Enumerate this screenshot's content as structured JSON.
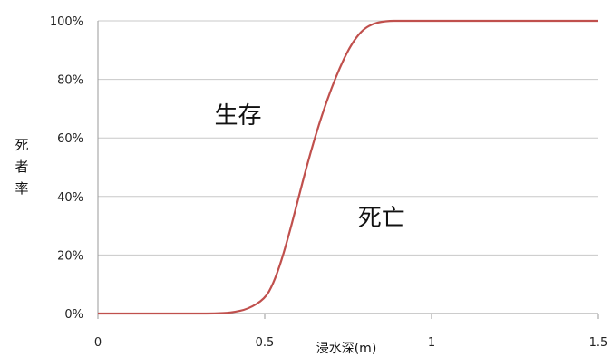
{
  "chart_data": {
    "type": "line",
    "title": "",
    "xlabel": "浸水深(m)",
    "ylabel": "死者率",
    "xlim": [
      0,
      1.5
    ],
    "ylim": [
      0,
      100
    ],
    "x_ticks": [
      0,
      0.5,
      1,
      1.5
    ],
    "x_tick_labels": [
      "0",
      "0.5",
      "1",
      "1.5"
    ],
    "y_ticks": [
      0,
      20,
      40,
      60,
      80,
      100
    ],
    "y_tick_labels": [
      "0%",
      "20%",
      "40%",
      "60%",
      "80%",
      "100%"
    ],
    "grid": "horizontal",
    "legend": "none",
    "annotations": [
      {
        "text": "生存",
        "x": 0.42,
        "y": 65
      },
      {
        "text": "死亡",
        "x": 0.85,
        "y": 30
      }
    ],
    "series": [
      {
        "color": "#c0504d",
        "x": [
          0,
          0.1,
          0.2,
          0.3,
          0.35,
          0.4,
          0.45,
          0.5,
          0.525,
          0.55,
          0.575,
          0.6,
          0.625,
          0.65,
          0.675,
          0.7,
          0.725,
          0.75,
          0.775,
          0.8,
          0.825,
          0.85,
          0.875,
          0.9,
          0.95,
          1.0,
          1.1,
          1.2,
          1.3,
          1.4,
          1.5
        ],
        "values": [
          0,
          0,
          0,
          0,
          0,
          0.3,
          1.5,
          5,
          10,
          18,
          28,
          39,
          50,
          60,
          69,
          77,
          84,
          90,
          94.5,
          97.5,
          99,
          99.7,
          100,
          100,
          100,
          100,
          100,
          100,
          100,
          100,
          100
        ]
      }
    ]
  },
  "colors": {
    "line": "#c0504d",
    "grid": "#c8c8c8",
    "axis": "#9a9a9a"
  }
}
